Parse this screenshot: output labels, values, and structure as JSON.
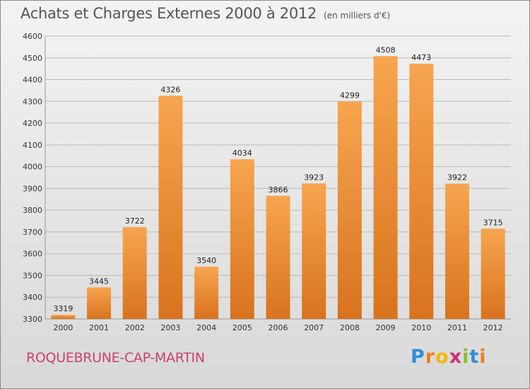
{
  "title": "Achats et Charges Externes 2000 à 2012",
  "subtitle": "(en milliers d'€)",
  "commune": "ROQUEBRUNE-CAP-MARTIN",
  "brand": {
    "letters": [
      "P",
      "r",
      "o",
      "x",
      "i",
      "t",
      "i"
    ],
    "colors": [
      "#2f8fd6",
      "#f07d1a",
      "#f5b800",
      "#d0317b",
      "#8bbf2f",
      "#2f8fd6",
      "#f07d1a"
    ]
  },
  "colors": {
    "bar_light": "#f7a54f",
    "bar_dark": "#d8731e",
    "accent": "#c9426b"
  },
  "chart_data": {
    "type": "bar",
    "title": "Achats et Charges Externes 2000 à 2012",
    "categories": [
      "2000",
      "2001",
      "2002",
      "2003",
      "2004",
      "2005",
      "2006",
      "2007",
      "2008",
      "2009",
      "2010",
      "2011",
      "2012"
    ],
    "values": [
      3319,
      3445,
      3722,
      4326,
      3540,
      4034,
      3866,
      3923,
      4299,
      4508,
      4473,
      3922,
      3715
    ],
    "ylim": [
      3300,
      4600
    ],
    "yticks": [
      3300,
      3400,
      3500,
      3600,
      3700,
      3800,
      3900,
      4000,
      4100,
      4200,
      4300,
      4400,
      4500,
      4600
    ],
    "grid": true,
    "xlabel": "",
    "ylabel": ""
  }
}
